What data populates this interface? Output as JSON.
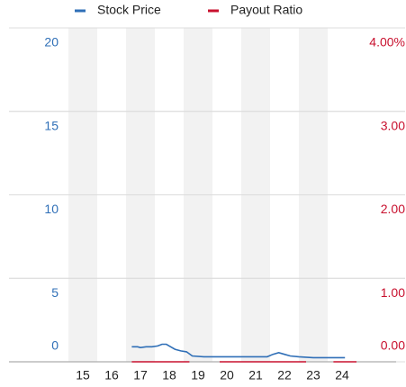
{
  "chart_data": {
    "type": "line",
    "xlim": [
      2014.5,
      2024.5
    ],
    "xticks": [
      {
        "value": 2015,
        "label": "15"
      },
      {
        "value": 2016,
        "label": "16"
      },
      {
        "value": 2017,
        "label": "17"
      },
      {
        "value": 2018,
        "label": "18"
      },
      {
        "value": 2019,
        "label": "19"
      },
      {
        "value": 2020,
        "label": "20"
      },
      {
        "value": 2021,
        "label": "21"
      },
      {
        "value": 2022,
        "label": "22"
      },
      {
        "value": 2023,
        "label": "23"
      },
      {
        "value": 2024,
        "label": "24"
      }
    ],
    "ylim": [
      0,
      20
    ],
    "yticks": [
      0,
      5,
      10,
      15,
      20
    ],
    "y2lim": [
      0,
      4
    ],
    "y2ticks": [
      {
        "value": 0,
        "label": "0.00"
      },
      {
        "value": 1,
        "label": "1.00"
      },
      {
        "value": 2,
        "label": "2.00"
      },
      {
        "value": 3,
        "label": "3.00"
      },
      {
        "value": 4,
        "label": "4.00%"
      }
    ],
    "series": [
      {
        "name": "Stock Price",
        "color": "#2f6fb7",
        "x": [
          2016.7,
          2016.9,
          2017.0,
          2017.2,
          2017.4,
          2017.6,
          2017.75,
          2017.9,
          2018.0,
          2018.2,
          2018.4,
          2018.6,
          2018.8,
          2019.2,
          2019.6,
          2020.0,
          2020.4,
          2020.8,
          2021.2,
          2021.4,
          2021.6,
          2021.8,
          2022.0,
          2022.2,
          2022.5,
          2023.0,
          2023.5,
          2024.1
        ],
        "values": [
          0.9,
          0.9,
          0.85,
          0.9,
          0.9,
          0.95,
          1.05,
          1.05,
          0.95,
          0.75,
          0.65,
          0.6,
          0.35,
          0.3,
          0.3,
          0.3,
          0.3,
          0.3,
          0.3,
          0.3,
          0.45,
          0.55,
          0.45,
          0.35,
          0.3,
          0.25,
          0.25,
          0.25
        ]
      },
      {
        "name": "Payout Ratio",
        "color": "#c8102e",
        "axis": "y2",
        "x": [
          2016.7,
          2018.7,
          2019.2,
          2019.75,
          2022.75,
          2023.2,
          2023.7,
          2024.5
        ],
        "values": [
          0,
          0,
          null,
          0,
          0,
          null,
          0,
          0
        ]
      }
    ]
  }
}
